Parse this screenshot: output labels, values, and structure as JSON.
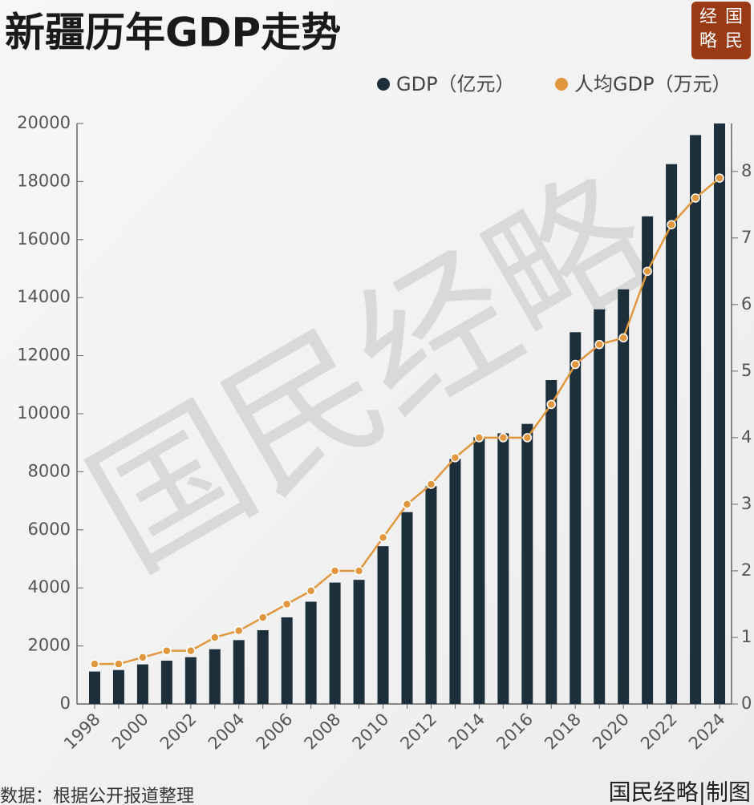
{
  "chart_data": {
    "type": "bar-line",
    "title": "新疆历年GDP走势",
    "logo": [
      "经",
      "国",
      "略",
      "民"
    ],
    "watermark": "国民经略",
    "source": "数据：根据公开报道整理",
    "credit": "国民经略|制图",
    "categories": [
      "1998",
      null,
      "2000",
      null,
      "2002",
      null,
      "2004",
      null,
      "2006",
      null,
      "2008",
      null,
      "2010",
      null,
      "2012",
      null,
      "2014",
      null,
      "2016",
      null,
      "2018",
      null,
      "2020",
      null,
      "2022",
      null,
      "2024"
    ],
    "series": [
      {
        "name": "GDP（亿元）",
        "type": "bar",
        "color": "#1c2f3a",
        "values": [
          1117,
          1168,
          1364,
          1491,
          1612,
          1886,
          2200,
          2541,
          2984,
          3523,
          4183,
          4277,
          5437,
          6610,
          7505,
          8444,
          9196,
          9325,
          9650,
          11160,
          12809,
          13597,
          14286,
          16800,
          18600,
          19600,
          20000
        ]
      },
      {
        "name": "人均GDP（万元）",
        "type": "line",
        "axis": "y2",
        "color": "#e0973e",
        "values": [
          0.6,
          0.6,
          0.7,
          0.8,
          0.8,
          1.0,
          1.1,
          1.3,
          1.5,
          1.7,
          2.0,
          2.0,
          2.5,
          3.0,
          3.3,
          3.7,
          4.0,
          4.0,
          4.0,
          4.5,
          5.1,
          5.4,
          5.5,
          6.5,
          7.2,
          7.6,
          7.9
        ]
      }
    ],
    "ylim": [
      0,
      20000
    ],
    "yticks": [
      0,
      2000,
      4000,
      6000,
      8000,
      10000,
      12000,
      14000,
      16000,
      18000,
      20000
    ],
    "y2lim": [
      0,
      8.72
    ],
    "y2ticks": [
      0,
      1,
      2,
      3,
      4,
      5,
      6,
      7,
      8
    ],
    "legend": "top-right"
  }
}
